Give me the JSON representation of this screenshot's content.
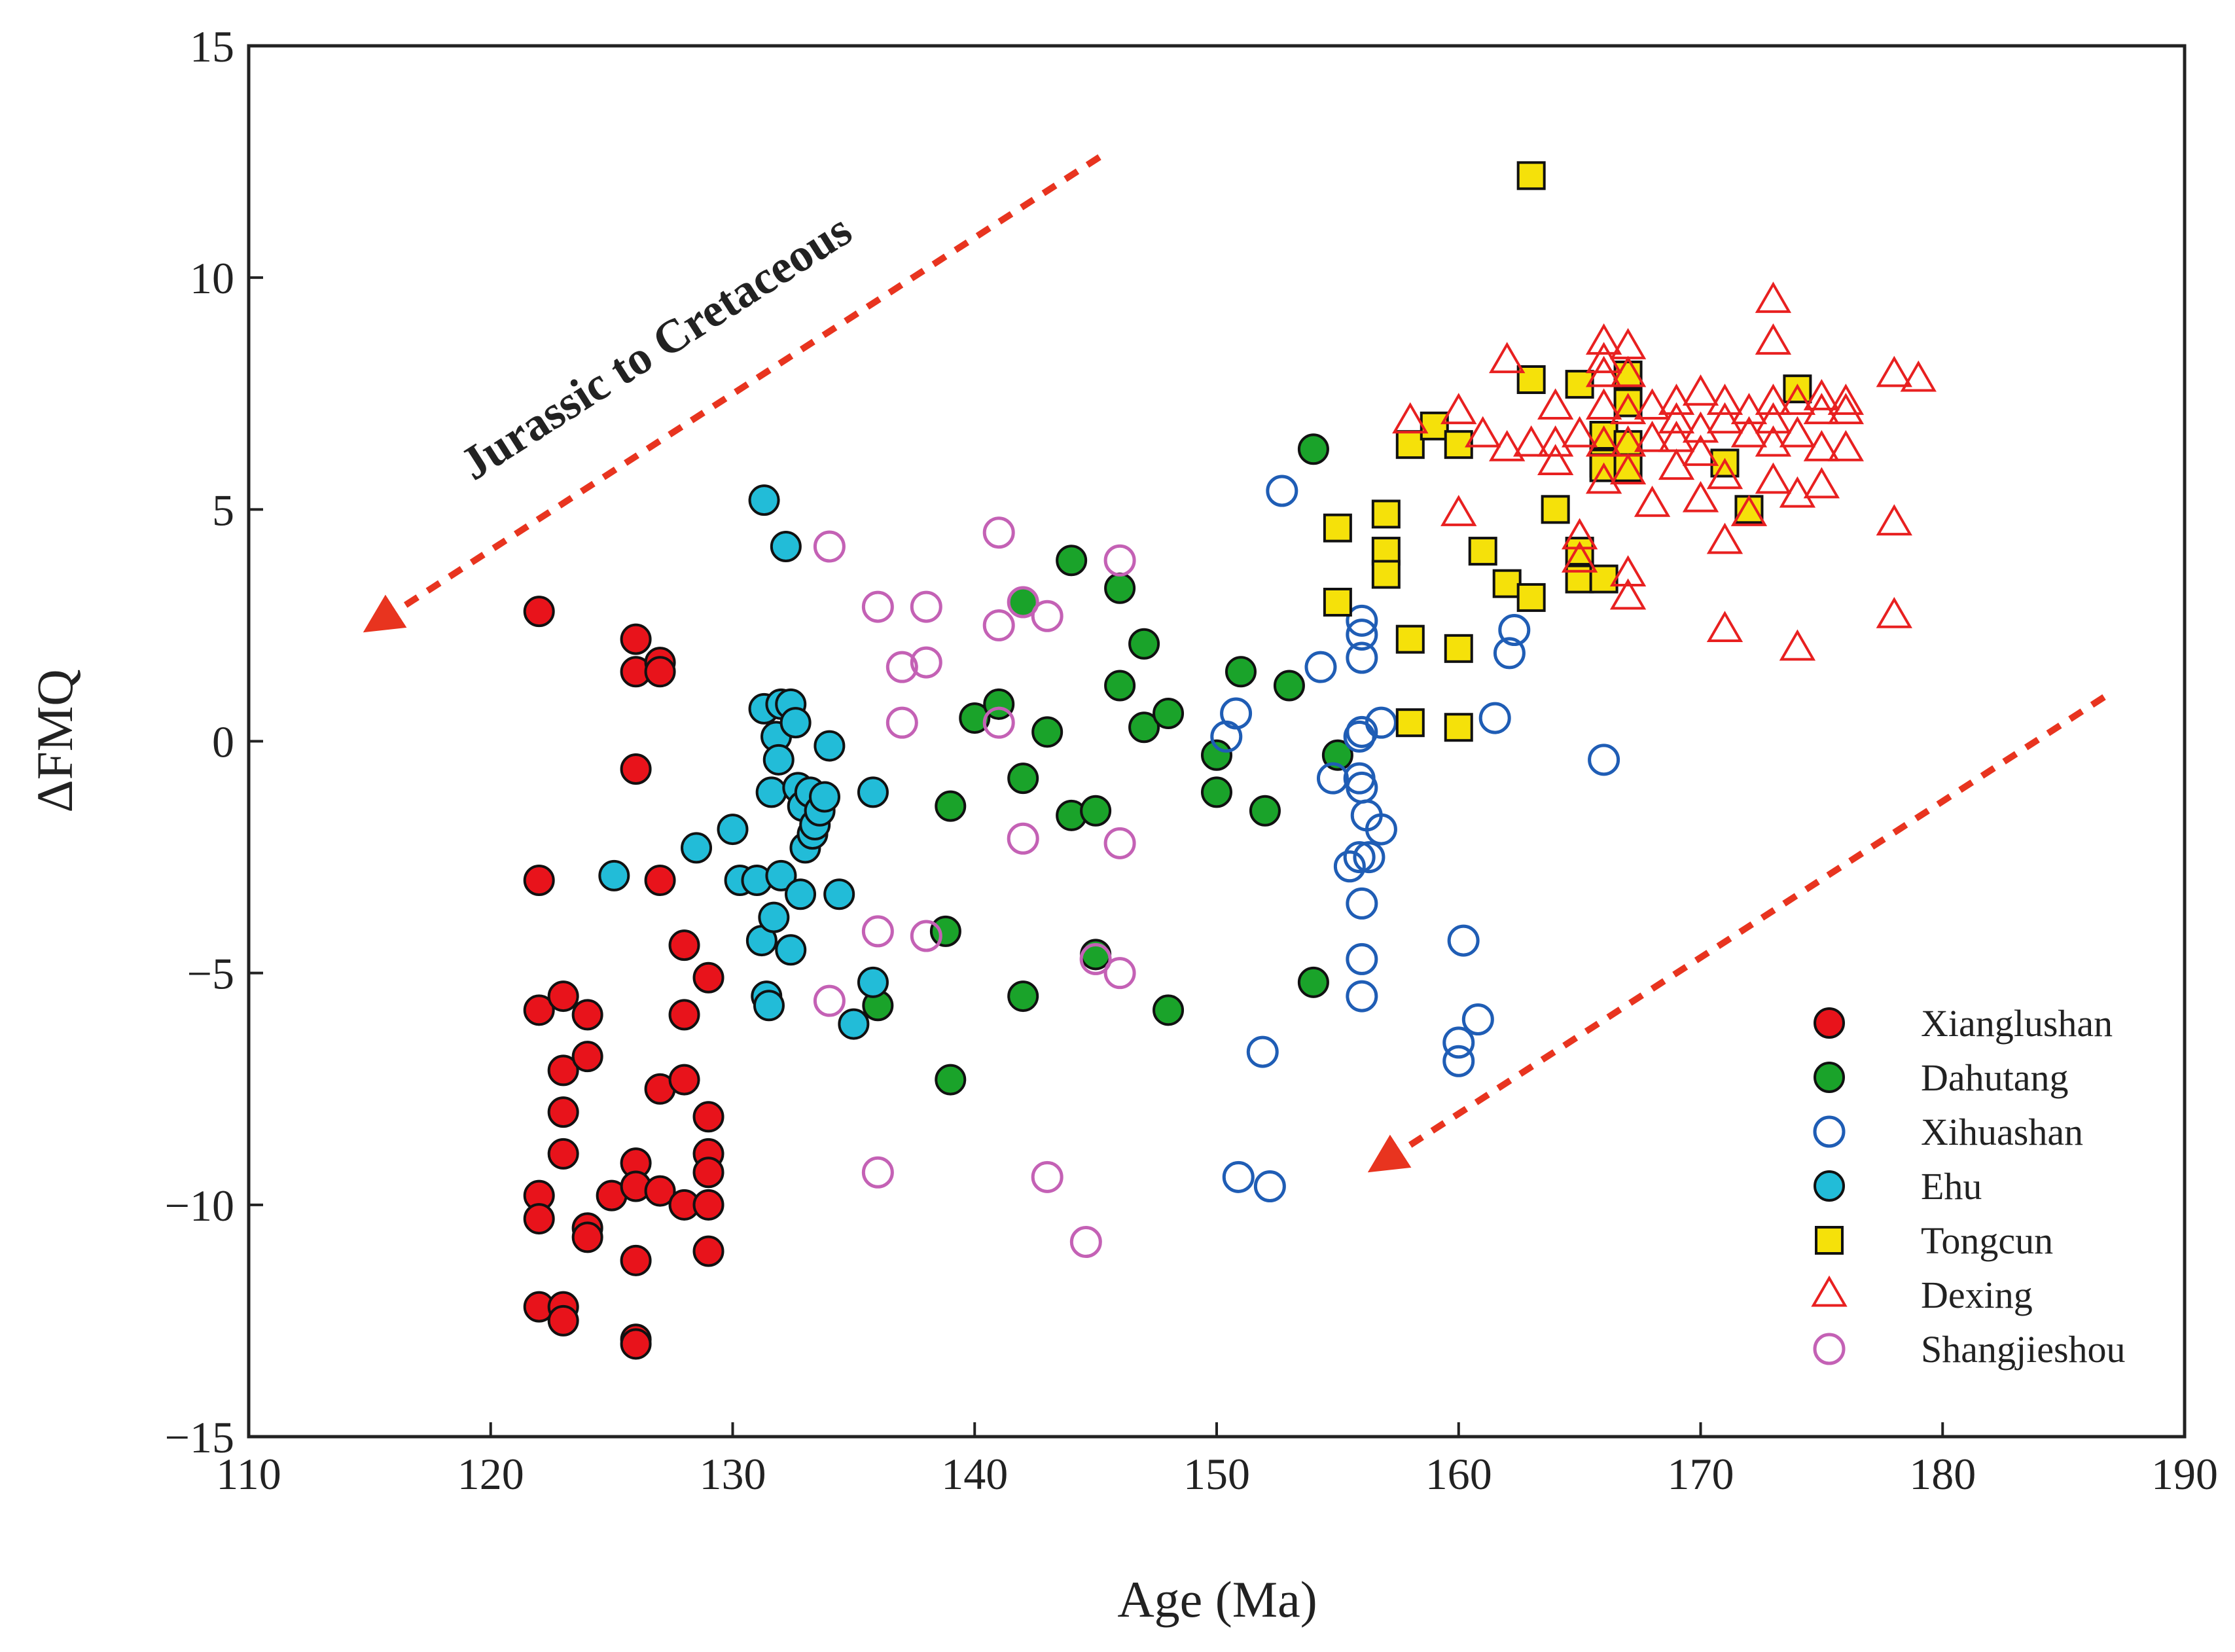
{
  "chart_data": {
    "type": "scatter",
    "title": "",
    "xlabel": "Age (Ma)",
    "ylabel": "ΔFMQ",
    "xlim": [
      110,
      190
    ],
    "ylim": [
      -15,
      15
    ],
    "xticks": [
      110,
      120,
      130,
      140,
      150,
      160,
      170,
      180,
      190
    ],
    "yticks": [
      -15,
      -10,
      -5,
      0,
      5,
      10,
      15
    ],
    "xtick_labels": [
      "110",
      "120",
      "130",
      "140",
      "150",
      "160",
      "170",
      "180",
      "190"
    ],
    "ytick_labels": [
      "−15",
      "−10",
      "−5",
      "0",
      "5",
      "10",
      "15"
    ],
    "grid": false,
    "legend_position": "bottom-right",
    "annotation": "Jurassic to Cretaceous",
    "series": [
      {
        "name": "Xianglushan",
        "marker": "circle",
        "filled": true,
        "fill": "#e8131b",
        "stroke": "#111111",
        "points": [
          [
            122,
            2.8
          ],
          [
            122,
            -3
          ],
          [
            122,
            -5.8
          ],
          [
            122,
            -9.8
          ],
          [
            122,
            -10.3
          ],
          [
            122,
            -12.2
          ],
          [
            123,
            -5.5
          ],
          [
            123,
            -7.1
          ],
          [
            123,
            -8
          ],
          [
            123,
            -8.9
          ],
          [
            123,
            -12.2
          ],
          [
            123,
            -12.5
          ],
          [
            124,
            -5.9
          ],
          [
            124,
            -6.8
          ],
          [
            124,
            -10.5
          ],
          [
            124,
            -10.7
          ],
          [
            125,
            -9.8
          ],
          [
            126,
            2.2
          ],
          [
            126,
            1.5
          ],
          [
            126,
            -0.6
          ],
          [
            126,
            -9.1
          ],
          [
            126,
            -9.6
          ],
          [
            126,
            -11.2
          ],
          [
            126,
            -12.9
          ],
          [
            126,
            -13
          ],
          [
            127,
            1.7
          ],
          [
            127,
            1.5
          ],
          [
            127,
            -3
          ],
          [
            127,
            -7.5
          ],
          [
            127,
            -9.7
          ],
          [
            128,
            -4.4
          ],
          [
            128,
            -5.9
          ],
          [
            128,
            -7.3
          ],
          [
            128,
            -10
          ],
          [
            129,
            -5.1
          ],
          [
            129,
            -8.1
          ],
          [
            129,
            -8.9
          ],
          [
            129,
            -9.3
          ],
          [
            129,
            -10
          ],
          [
            129,
            -11
          ]
        ]
      },
      {
        "name": "Dahutang",
        "marker": "circle",
        "filled": true,
        "fill": "#1aa32a",
        "stroke": "#111111",
        "points": [
          [
            136,
            -5.7
          ],
          [
            138.8,
            -4.1
          ],
          [
            139,
            -1.4
          ],
          [
            139,
            -7.3
          ],
          [
            140,
            0.5
          ],
          [
            141,
            0.8
          ],
          [
            142,
            3
          ],
          [
            142,
            -0.8
          ],
          [
            142,
            -5.5
          ],
          [
            143,
            0.2
          ],
          [
            144,
            3.9
          ],
          [
            144,
            -1.6
          ],
          [
            145,
            -1.5
          ],
          [
            145,
            -4.6
          ],
          [
            146,
            3.3
          ],
          [
            146,
            1.2
          ],
          [
            147,
            2.1
          ],
          [
            147,
            0.3
          ],
          [
            148,
            0.6
          ],
          [
            148,
            -5.8
          ],
          [
            150,
            -0.3
          ],
          [
            150,
            -1.1
          ],
          [
            151,
            1.5
          ],
          [
            152,
            -1.5
          ],
          [
            153,
            1.2
          ],
          [
            154,
            6.3
          ],
          [
            154,
            -5.2
          ],
          [
            155,
            -0.3
          ]
        ]
      },
      {
        "name": "Xihuashan",
        "marker": "circle",
        "filled": false,
        "fill": "none",
        "stroke": "#1f5db5",
        "points": [
          [
            152.7,
            5.4
          ],
          [
            150.4,
            0.1
          ],
          [
            150.8,
            0.6
          ],
          [
            150.9,
            -9.4
          ],
          [
            151.9,
            -6.7
          ],
          [
            152.2,
            -9.6
          ],
          [
            154.3,
            1.6
          ],
          [
            154.8,
            -0.8
          ],
          [
            155.5,
            -2.7
          ],
          [
            155.9,
            0.1
          ],
          [
            155.9,
            -0.8
          ],
          [
            155.9,
            -2.5
          ],
          [
            156,
            2.6
          ],
          [
            156,
            2.3
          ],
          [
            156,
            1.8
          ],
          [
            156,
            0.2
          ],
          [
            156,
            -1
          ],
          [
            156,
            -3.5
          ],
          [
            156,
            -4.7
          ],
          [
            156,
            -5.5
          ],
          [
            156.2,
            -1.6
          ],
          [
            156.3,
            -2.5
          ],
          [
            156.8,
            0.4
          ],
          [
            156.8,
            -1.9
          ],
          [
            160,
            -6.5
          ],
          [
            160,
            -6.9
          ],
          [
            160.2,
            -4.3
          ],
          [
            160.8,
            -6
          ],
          [
            161.5,
            0.5
          ],
          [
            162.1,
            1.9
          ],
          [
            162.3,
            2.4
          ],
          [
            166,
            -0.4
          ]
        ]
      },
      {
        "name": "Ehu",
        "marker": "circle",
        "filled": true,
        "fill": "#22bcd8",
        "stroke": "#111111",
        "points": [
          [
            125.1,
            -2.9
          ],
          [
            128.5,
            -2.3
          ],
          [
            130,
            -1.9
          ],
          [
            130.3,
            -3
          ],
          [
            131,
            -3
          ],
          [
            131.2,
            -4.3
          ],
          [
            131.3,
            5.2
          ],
          [
            131.3,
            0.7
          ],
          [
            131.4,
            -5.5
          ],
          [
            131.5,
            -5.7
          ],
          [
            131.6,
            -1.1
          ],
          [
            131.7,
            -3.8
          ],
          [
            131.8,
            0.1
          ],
          [
            131.9,
            -0.4
          ],
          [
            132,
            -2.9
          ],
          [
            132,
            0.8
          ],
          [
            132.2,
            4.2
          ],
          [
            132.4,
            0.8
          ],
          [
            132.4,
            -4.5
          ],
          [
            132.6,
            0.4
          ],
          [
            132.7,
            -1
          ],
          [
            132.8,
            -3.3
          ],
          [
            132.9,
            -1.4
          ],
          [
            133,
            -2.3
          ],
          [
            133.2,
            -1.1
          ],
          [
            133.3,
            -2
          ],
          [
            133.4,
            -1.8
          ],
          [
            133.6,
            -1.5
          ],
          [
            133.8,
            -1.2
          ],
          [
            134,
            -0.1
          ],
          [
            134.4,
            -3.3
          ],
          [
            135,
            -6.1
          ],
          [
            135.8,
            -1.1
          ],
          [
            135.8,
            -5.2
          ]
        ]
      },
      {
        "name": "Tongcun",
        "marker": "square",
        "filled": true,
        "fill": "#f5e10a",
        "stroke": "#111111",
        "points": [
          [
            163,
            12.2
          ],
          [
            155,
            4.6
          ],
          [
            155,
            3
          ],
          [
            157,
            4.9
          ],
          [
            157,
            4.1
          ],
          [
            157,
            3.6
          ],
          [
            158,
            6.4
          ],
          [
            158,
            2.2
          ],
          [
            158,
            0.4
          ],
          [
            159,
            6.8
          ],
          [
            160,
            6.4
          ],
          [
            160,
            2
          ],
          [
            160,
            0.3
          ],
          [
            161,
            4.1
          ],
          [
            162,
            3.4
          ],
          [
            163,
            7.8
          ],
          [
            163,
            3.1
          ],
          [
            164,
            5
          ],
          [
            165,
            7.7
          ],
          [
            165,
            4.1
          ],
          [
            165,
            3.5
          ],
          [
            166,
            6.6
          ],
          [
            166,
            6
          ],
          [
            166,
            5.9
          ],
          [
            166,
            3.5
          ],
          [
            167,
            7.9
          ],
          [
            167,
            7.3
          ],
          [
            167,
            6.4
          ],
          [
            167,
            5.9
          ],
          [
            171,
            6
          ],
          [
            172,
            5
          ],
          [
            174,
            7.6
          ]
        ]
      },
      {
        "name": "Dexing",
        "marker": "triangle",
        "filled": false,
        "fill": "none",
        "stroke": "#e82020",
        "points": [
          [
            158,
            6.9
          ],
          [
            160,
            7.1
          ],
          [
            160,
            4.9
          ],
          [
            161,
            6.6
          ],
          [
            162,
            8.2
          ],
          [
            162,
            6.3
          ],
          [
            163,
            6.4
          ],
          [
            164,
            7.2
          ],
          [
            164,
            6
          ],
          [
            164,
            6.4
          ],
          [
            165,
            6.6
          ],
          [
            165,
            4.4
          ],
          [
            165,
            3.9
          ],
          [
            166,
            8.6
          ],
          [
            166,
            8.2
          ],
          [
            166,
            7.9
          ],
          [
            166,
            7.2
          ],
          [
            166,
            6.4
          ],
          [
            166,
            5.6
          ],
          [
            167,
            8.5
          ],
          [
            167,
            7.9
          ],
          [
            167,
            7.1
          ],
          [
            167,
            6.4
          ],
          [
            167,
            5.8
          ],
          [
            167,
            3.6
          ],
          [
            167,
            3.1
          ],
          [
            168,
            7.2
          ],
          [
            168,
            6.5
          ],
          [
            168,
            5.1
          ],
          [
            169,
            7.3
          ],
          [
            169,
            6.9
          ],
          [
            169,
            6.5
          ],
          [
            169,
            5.9
          ],
          [
            170,
            7.5
          ],
          [
            170,
            6.7
          ],
          [
            170,
            6.2
          ],
          [
            170,
            5.2
          ],
          [
            171,
            7.3
          ],
          [
            171,
            6.9
          ],
          [
            171,
            5.7
          ],
          [
            171,
            4.3
          ],
          [
            171,
            2.4
          ],
          [
            172,
            7.1
          ],
          [
            172,
            6.6
          ],
          [
            172,
            4.9
          ],
          [
            173,
            9.5
          ],
          [
            173,
            8.6
          ],
          [
            173,
            7.3
          ],
          [
            173,
            6.9
          ],
          [
            173,
            6.4
          ],
          [
            173,
            5.6
          ],
          [
            174,
            7.3
          ],
          [
            174,
            6.6
          ],
          [
            174,
            5.3
          ],
          [
            174,
            2
          ],
          [
            175,
            7.4
          ],
          [
            175,
            7.1
          ],
          [
            175,
            6.3
          ],
          [
            175,
            5.5
          ],
          [
            176,
            7.3
          ],
          [
            176,
            7.1
          ],
          [
            176,
            6.3
          ],
          [
            178,
            7.9
          ],
          [
            178,
            4.7
          ],
          [
            178,
            2.7
          ],
          [
            179,
            7.8
          ]
        ]
      },
      {
        "name": "Shangjieshou",
        "marker": "circle",
        "filled": false,
        "fill": "none",
        "stroke": "#c461b5",
        "points": [
          [
            134,
            4.2
          ],
          [
            134,
            -5.6
          ],
          [
            136,
            2.9
          ],
          [
            136,
            -4.1
          ],
          [
            136,
            -9.3
          ],
          [
            137,
            1.6
          ],
          [
            137,
            0.4
          ],
          [
            138,
            2.9
          ],
          [
            138,
            1.7
          ],
          [
            138,
            -4.2
          ],
          [
            141,
            4.5
          ],
          [
            141,
            2.5
          ],
          [
            141,
            0.4
          ],
          [
            142,
            3
          ],
          [
            142,
            -2.1
          ],
          [
            143,
            2.7
          ],
          [
            143,
            -9.4
          ],
          [
            144.6,
            -10.8
          ],
          [
            145,
            -4.7
          ],
          [
            146,
            3.9
          ],
          [
            146,
            -2.2
          ],
          [
            146,
            -5
          ]
        ]
      }
    ]
  }
}
